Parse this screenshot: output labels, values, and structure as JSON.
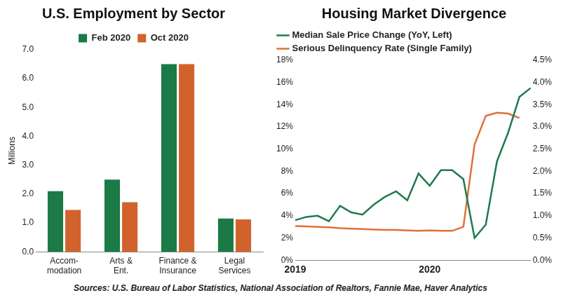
{
  "chart_data": [
    {
      "type": "bar",
      "title": "U.S. Employment by Sector",
      "categories": [
        "Accom-\nmodation",
        "Arts &\nEnt.",
        "Finance &\nInsurance",
        "Legal\nServices"
      ],
      "series": [
        {
          "name": "Feb 2020",
          "color": "#1b7a46",
          "values": [
            2.1,
            2.5,
            6.5,
            1.15
          ]
        },
        {
          "name": "Oct 2020",
          "color": "#d2622c",
          "values": [
            1.45,
            1.72,
            6.5,
            1.12
          ]
        }
      ],
      "y_label": "Millions",
      "ylim": [
        0,
        7
      ],
      "yticks": [
        {
          "value": 0,
          "label": "0.0"
        },
        {
          "value": 1,
          "label": "1.0"
        },
        {
          "value": 2,
          "label": "2.0"
        },
        {
          "value": 3,
          "label": "3.0"
        },
        {
          "value": 4,
          "label": "4.0"
        },
        {
          "value": 5,
          "label": "5.0"
        },
        {
          "value": 6,
          "label": "6.0"
        },
        {
          "value": 7,
          "label": "7.0"
        }
      ],
      "grid": false,
      "legend": "top"
    },
    {
      "type": "line",
      "title": "Housing Market Divergence",
      "categories": [
        "2019",
        null,
        null,
        null,
        null,
        null,
        null,
        null,
        null,
        null,
        null,
        null,
        "2020",
        null,
        null,
        null,
        null,
        null,
        null,
        null,
        null,
        null
      ],
      "series": [
        {
          "name": "Median Sale Price Change (YoY, Left)",
          "color": "#1f7a4d",
          "axis": "y",
          "values": [
            3.6,
            3.9,
            4.0,
            3.5,
            4.9,
            4.3,
            4.1,
            5.0,
            5.7,
            6.2,
            5.4,
            7.8,
            6.7,
            8.1,
            8.1,
            7.3,
            2.0,
            3.2,
            8.9,
            11.5,
            14.7,
            15.5
          ]
        },
        {
          "name": "Serious Delinquency Rate (Single Family)",
          "color": "#e0703a",
          "axis": "y2",
          "values": [
            0.77,
            0.76,
            0.75,
            0.74,
            0.72,
            0.71,
            0.7,
            0.69,
            0.68,
            0.68,
            0.67,
            0.66,
            0.67,
            0.66,
            0.66,
            0.75,
            2.6,
            3.25,
            3.32,
            3.3,
            3.2,
            null
          ]
        }
      ],
      "ylim": [
        0,
        18
      ],
      "yticks": [
        {
          "value": 0,
          "label": "0%"
        },
        {
          "value": 2,
          "label": "2%"
        },
        {
          "value": 4,
          "label": "4%"
        },
        {
          "value": 6,
          "label": "6%"
        },
        {
          "value": 8,
          "label": "8%"
        },
        {
          "value": 10,
          "label": "10%"
        },
        {
          "value": 12,
          "label": "12%"
        },
        {
          "value": 14,
          "label": "14%"
        },
        {
          "value": 16,
          "label": "16%"
        },
        {
          "value": 18,
          "label": "18%"
        }
      ],
      "y2lim": [
        0,
        4.5
      ],
      "y2ticks": [
        {
          "value": 0,
          "label": "0.0%"
        },
        {
          "value": 0.5,
          "label": "0.5%"
        },
        {
          "value": 1,
          "label": "1.0%"
        },
        {
          "value": 1.5,
          "label": "1.5%"
        },
        {
          "value": 2,
          "label": "2.0%"
        },
        {
          "value": 2.5,
          "label": "2.5%"
        },
        {
          "value": 3,
          "label": "3.0%"
        },
        {
          "value": 3.5,
          "label": "3.5%"
        },
        {
          "value": 4,
          "label": "4.0%"
        },
        {
          "value": 4.5,
          "label": "4.5%"
        }
      ],
      "grid": false,
      "legend": "top"
    }
  ],
  "sources": "Sources: U.S. Bureau of Labor Statistics, National Association of Realtors, Fannie Mae, Haver Analytics"
}
